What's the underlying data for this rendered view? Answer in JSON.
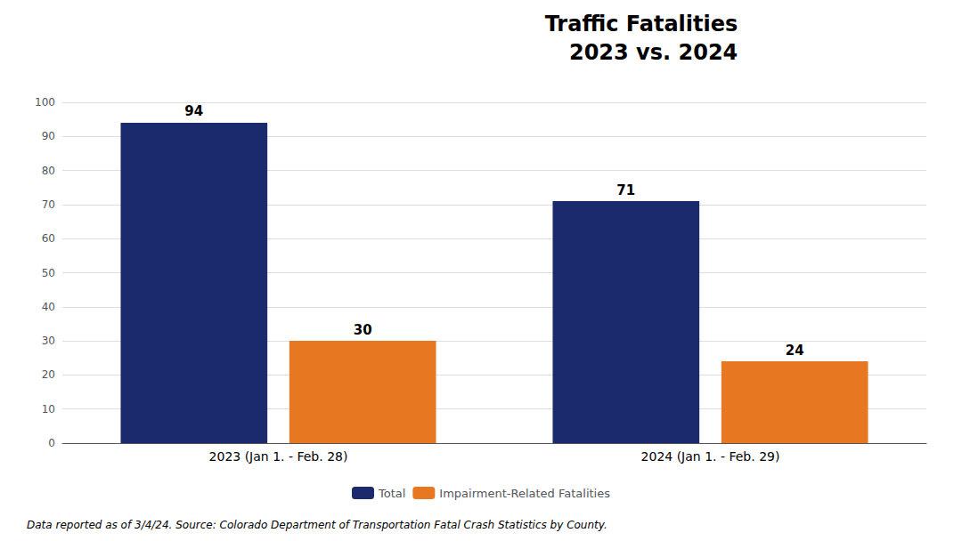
{
  "chart_data": {
    "type": "bar",
    "title": "Traffic Fatalities",
    "subtitle": "2023 vs. 2024",
    "categories": [
      "2023 (Jan 1. - Feb. 28)",
      "2024 (Jan 1. - Feb. 29)"
    ],
    "series": [
      {
        "name": "Total",
        "color": "#1a2a6c",
        "values": [
          94,
          71
        ]
      },
      {
        "name": "Impairment-Related Fatalities",
        "color": "#e87722",
        "values": [
          30,
          24
        ]
      }
    ],
    "ylim": [
      0,
      100
    ],
    "yticks": [
      0,
      10,
      20,
      30,
      40,
      50,
      60,
      70,
      80,
      90,
      100
    ],
    "grid": true,
    "legend": "bottom",
    "data_labels": true,
    "annotations": [
      "Data reported as of 3/4/24. Source: Colorado Department of Transportation Fatal Crash Statistics by County."
    ]
  }
}
